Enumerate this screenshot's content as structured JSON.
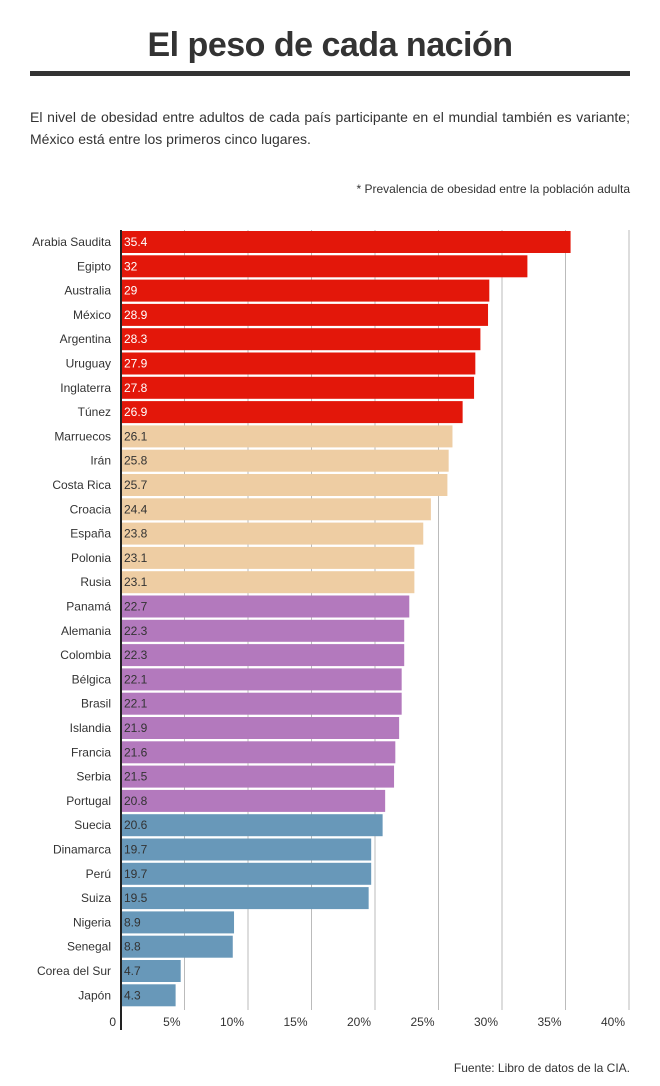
{
  "header": {
    "title": "El peso de cada nación",
    "description": "El nivel de obesidad entre adultos de cada país participante en el mundial también es variante; México está entre los primeros cinco lugares.",
    "note": "* Prevalencia de obesidad entre la población adulta"
  },
  "footer": {
    "source": "Fuente: Libro de datos de la CIA."
  },
  "chart_data": {
    "type": "bar",
    "orientation": "horizontal",
    "title": "El peso de cada nación",
    "xlabel": "",
    "ylabel": "",
    "xlim": [
      0,
      40
    ],
    "ticks": [
      {
        "value": 0,
        "label": "0"
      },
      {
        "value": 5,
        "label": "5%"
      },
      {
        "value": 10,
        "label": "10%"
      },
      {
        "value": 15,
        "label": "15%"
      },
      {
        "value": 20,
        "label": "20%"
      },
      {
        "value": 25,
        "label": "25%"
      },
      {
        "value": 30,
        "label": "30%"
      },
      {
        "value": 35,
        "label": "35%"
      },
      {
        "value": 40,
        "label": "40%"
      }
    ],
    "grid": true,
    "legend": "none",
    "categories": [
      "Arabia Saudita",
      "Egipto",
      "Australia",
      "México",
      "Argentina",
      "Uruguay",
      "Inglaterra",
      "Túnez",
      "Marruecos",
      "Irán",
      "Costa Rica",
      "Croacia",
      "España",
      "Polonia",
      "Rusia",
      "Panamá",
      "Alemania",
      "Colombia",
      "Bélgica",
      "Brasil",
      "Islandia",
      "Francia",
      "Serbia",
      "Portugal",
      "Suecia",
      "Dinamarca",
      "Perú",
      "Suiza",
      "Nigeria",
      "Senegal",
      "Corea del Sur",
      "Japón"
    ],
    "values": [
      35.4,
      32,
      29,
      28.9,
      28.3,
      27.9,
      27.8,
      26.9,
      26.1,
      25.8,
      25.7,
      24.4,
      23.8,
      23.1,
      23.1,
      22.7,
      22.3,
      22.3,
      22.1,
      22.1,
      21.9,
      21.6,
      21.5,
      20.8,
      20.6,
      19.7,
      19.7,
      19.5,
      8.9,
      8.8,
      4.7,
      4.3
    ],
    "value_labels": [
      "35.4",
      "32",
      "29",
      "28.9",
      "28.3",
      "27.9",
      "27.8",
      "26.9",
      "26.1",
      "25.8",
      "25.7",
      "24.4",
      "23.8",
      "23.1",
      "23.1",
      "22.7",
      "22.3",
      "22.3",
      "22.1",
      "22.1",
      "21.9",
      "21.6",
      "21.5",
      "20.8",
      "20.6",
      "19.7",
      "19.7",
      "19.5",
      "8.9",
      "8.8",
      "4.7",
      "4.3"
    ],
    "groups": [
      {
        "count": 8,
        "color": "#e3170a",
        "label_color": "#ffffff"
      },
      {
        "count": 7,
        "color": "#eecda3",
        "label_color": "#333333"
      },
      {
        "count": 9,
        "color": "#b379bd",
        "label_color": "#333333"
      },
      {
        "count": 8,
        "color": "#6898b9",
        "label_color": "#333333"
      }
    ],
    "colors": {
      "grid": "#bbbbbb",
      "axis": "#222222"
    }
  }
}
